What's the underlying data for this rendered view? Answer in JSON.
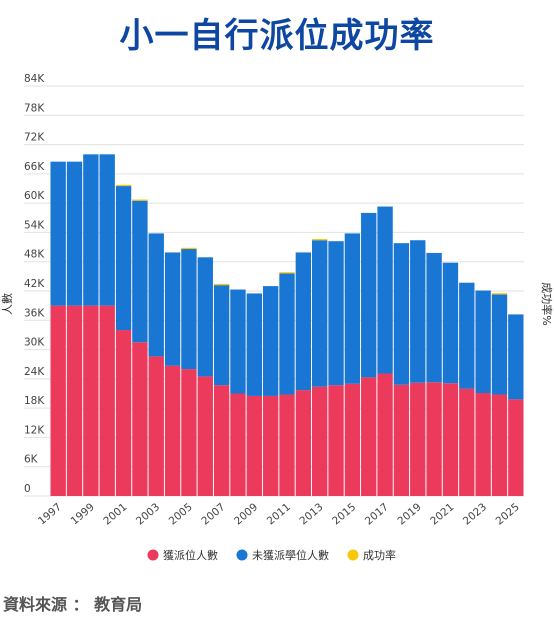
{
  "title": "小一自行派位成功率",
  "source": "資料來源 ： 教育局",
  "colors": {
    "success": "#ec3a5c",
    "fail": "#1976d2",
    "rate": "#f9c70c",
    "title": "#0d47a1"
  },
  "chart_data": {
    "type": "bar",
    "stacked": true,
    "title": "小一自行派位成功率",
    "ylabel": "人數",
    "y2label": "成功率%",
    "ylim": [
      0,
      84000
    ],
    "y_ticks": [
      0,
      6000,
      12000,
      18000,
      24000,
      30000,
      36000,
      42000,
      48000,
      54000,
      60000,
      66000,
      72000,
      78000,
      84000
    ],
    "y_tick_labels": [
      "0",
      "6K",
      "12K",
      "18K",
      "24K",
      "30K",
      "36K",
      "42K",
      "48K",
      "54K",
      "60K",
      "66K",
      "72K",
      "78K",
      "84K"
    ],
    "x_tick_labels": [
      "1997",
      "1999",
      "2001",
      "2003",
      "2005",
      "2007",
      "2009",
      "2011",
      "2013",
      "2015",
      "2017",
      "2019",
      "2021",
      "2023",
      "2025"
    ],
    "grid": true,
    "legend_position": "bottom",
    "categories": [
      "1997",
      "1998",
      "1999",
      "2000",
      "2001",
      "2002",
      "2003",
      "2004",
      "2005",
      "2006",
      "2007",
      "2008",
      "2009",
      "2010",
      "2011",
      "2012",
      "2013",
      "2014",
      "2015",
      "2016",
      "2017",
      "2018",
      "2019",
      "2020",
      "2021",
      "2022",
      "2023",
      "2024",
      "2025"
    ],
    "series": [
      {
        "name": "獲派位人數",
        "color": "#ec3a5c",
        "values": [
          39000,
          39000,
          39000,
          39000,
          34000,
          31500,
          28600,
          26700,
          26000,
          24500,
          22700,
          21000,
          20500,
          20500,
          20800,
          21700,
          22400,
          22700,
          23000,
          24300,
          25100,
          22800,
          23200,
          23300,
          23100,
          22000,
          21100,
          20800,
          19800
        ]
      },
      {
        "name": "未獲派學位人數",
        "color": "#1976d2",
        "values": [
          29500,
          29500,
          31000,
          31000,
          29500,
          29000,
          25200,
          23200,
          24600,
          24400,
          20500,
          21300,
          21000,
          22500,
          24800,
          28200,
          30000,
          29500,
          30800,
          33700,
          34200,
          29000,
          29200,
          26500,
          24700,
          21700,
          21000,
          20500,
          17400
        ]
      },
      {
        "name": "成功率",
        "color": "#f9c70c",
        "values": [
          null,
          null,
          null,
          null,
          250,
          250,
          null,
          null,
          250,
          null,
          250,
          null,
          null,
          null,
          250,
          null,
          250,
          null,
          null,
          null,
          null,
          null,
          null,
          null,
          null,
          null,
          null,
          250,
          null
        ]
      }
    ]
  }
}
